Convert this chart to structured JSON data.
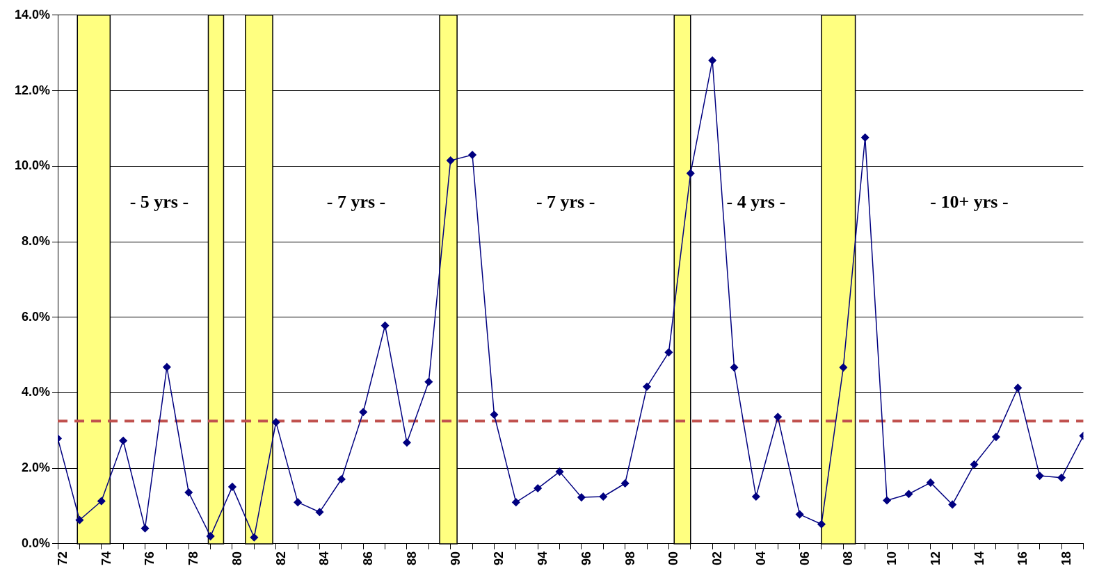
{
  "chart_data": {
    "type": "line",
    "x": [
      1972,
      1973,
      1974,
      1975,
      1976,
      1977,
      1978,
      1979,
      1980,
      1981,
      1982,
      1983,
      1984,
      1985,
      1986,
      1987,
      1988,
      1989,
      1990,
      1991,
      1992,
      1993,
      1994,
      1995,
      1996,
      1997,
      1998,
      1999,
      2000,
      2001,
      2002,
      2003,
      2004,
      2005,
      2006,
      2007,
      2008,
      2009,
      2010,
      2011,
      2012,
      2013,
      2014,
      2015,
      2016,
      2017,
      2018,
      2019
    ],
    "series": [
      {
        "color": "#000080",
        "values": [
          2.79,
          0.63,
          1.13,
          2.73,
          0.41,
          4.68,
          1.36,
          0.2,
          1.51,
          0.17,
          3.22,
          1.1,
          0.84,
          1.71,
          3.49,
          5.78,
          2.68,
          4.29,
          10.15,
          10.3,
          3.42,
          1.1,
          1.47,
          1.91,
          1.23,
          1.25,
          1.6,
          4.16,
          5.07,
          9.81,
          12.8,
          4.67,
          1.25,
          3.36,
          0.78,
          0.52,
          4.67,
          10.76,
          1.15,
          1.32,
          1.62,
          1.04,
          2.1,
          2.83,
          4.13,
          1.8,
          1.75,
          2.86
        ]
      }
    ],
    "marker": "diamond",
    "line_style": "solid",
    "grid": "y",
    "legend": false,
    "xlim": [
      1972,
      2019
    ],
    "xticks": [
      {
        "value": 1972,
        "label": "72"
      },
      {
        "value": 1974,
        "label": "74"
      },
      {
        "value": 1976,
        "label": "76"
      },
      {
        "value": 1978,
        "label": "78"
      },
      {
        "value": 1980,
        "label": "80"
      },
      {
        "value": 1982,
        "label": "82"
      },
      {
        "value": 1984,
        "label": "84"
      },
      {
        "value": 1986,
        "label": "86"
      },
      {
        "value": 1988,
        "label": "88"
      },
      {
        "value": 1990,
        "label": "90"
      },
      {
        "value": 1992,
        "label": "92"
      },
      {
        "value": 1994,
        "label": "94"
      },
      {
        "value": 1996,
        "label": "96"
      },
      {
        "value": 1998,
        "label": "98"
      },
      {
        "value": 2000,
        "label": "00"
      },
      {
        "value": 2002,
        "label": "02"
      },
      {
        "value": 2004,
        "label": "04"
      },
      {
        "value": 2006,
        "label": "06"
      },
      {
        "value": 2008,
        "label": "08"
      },
      {
        "value": 2010,
        "label": "10"
      },
      {
        "value": 2012,
        "label": "12"
      },
      {
        "value": 2014,
        "label": "14"
      },
      {
        "value": 2016,
        "label": "16"
      },
      {
        "value": 2018,
        "label": "18"
      },
      {
        "value": 1973,
        "label": null
      },
      {
        "value": 1975,
        "label": null
      },
      {
        "value": 1977,
        "label": null
      },
      {
        "value": 1979,
        "label": null
      },
      {
        "value": 1981,
        "label": null
      },
      {
        "value": 1983,
        "label": null
      },
      {
        "value": 1985,
        "label": null
      },
      {
        "value": 1987,
        "label": null
      },
      {
        "value": 1989,
        "label": null
      },
      {
        "value": 1991,
        "label": null
      },
      {
        "value": 1993,
        "label": null
      },
      {
        "value": 1995,
        "label": null
      },
      {
        "value": 1997,
        "label": null
      },
      {
        "value": 1999,
        "label": null
      },
      {
        "value": 2001,
        "label": null
      },
      {
        "value": 2003,
        "label": null
      },
      {
        "value": 2005,
        "label": null
      },
      {
        "value": 2007,
        "label": null
      },
      {
        "value": 2009,
        "label": null
      },
      {
        "value": 2011,
        "label": null
      },
      {
        "value": 2013,
        "label": null
      },
      {
        "value": 2015,
        "label": null
      },
      {
        "value": 2017,
        "label": null
      },
      {
        "value": 2019,
        "label": null
      }
    ],
    "ylim": [
      0,
      14
    ],
    "yticks": [
      {
        "value": 0,
        "label": "0.0%"
      },
      {
        "value": 2,
        "label": "2.0%"
      },
      {
        "value": 4,
        "label": "4.0%"
      },
      {
        "value": 6,
        "label": "6.0%"
      },
      {
        "value": 8,
        "label": "8.0%"
      },
      {
        "value": 10,
        "label": "10.0%"
      },
      {
        "value": 12,
        "label": "12.0%"
      },
      {
        "value": 14,
        "label": "14.0%"
      }
    ],
    "ref_lines": [
      {
        "axis": "y",
        "value": 3.25,
        "color": "#c0504d",
        "line_style": "dashed"
      }
    ],
    "bands": [
      {
        "axis": "x",
        "from": 1972.9,
        "to": 1974.4,
        "color": "#ffff80"
      },
      {
        "axis": "x",
        "from": 1978.9,
        "to": 1979.6,
        "color": "#ffff80"
      },
      {
        "axis": "x",
        "from": 1980.6,
        "to": 1981.85,
        "color": "#ffff80"
      },
      {
        "axis": "x",
        "from": 1989.5,
        "to": 1990.3,
        "color": "#ffff80"
      },
      {
        "axis": "x",
        "from": 2000.25,
        "to": 2001.0,
        "color": "#ffff80"
      },
      {
        "axis": "x",
        "from": 2007.0,
        "to": 2008.55,
        "color": "#ffff80"
      }
    ],
    "annotations": [
      "- 5 yrs -",
      "- 7 yrs -",
      "- 7 yrs -",
      "- 4 yrs -",
      "- 10+ yrs -"
    ]
  }
}
